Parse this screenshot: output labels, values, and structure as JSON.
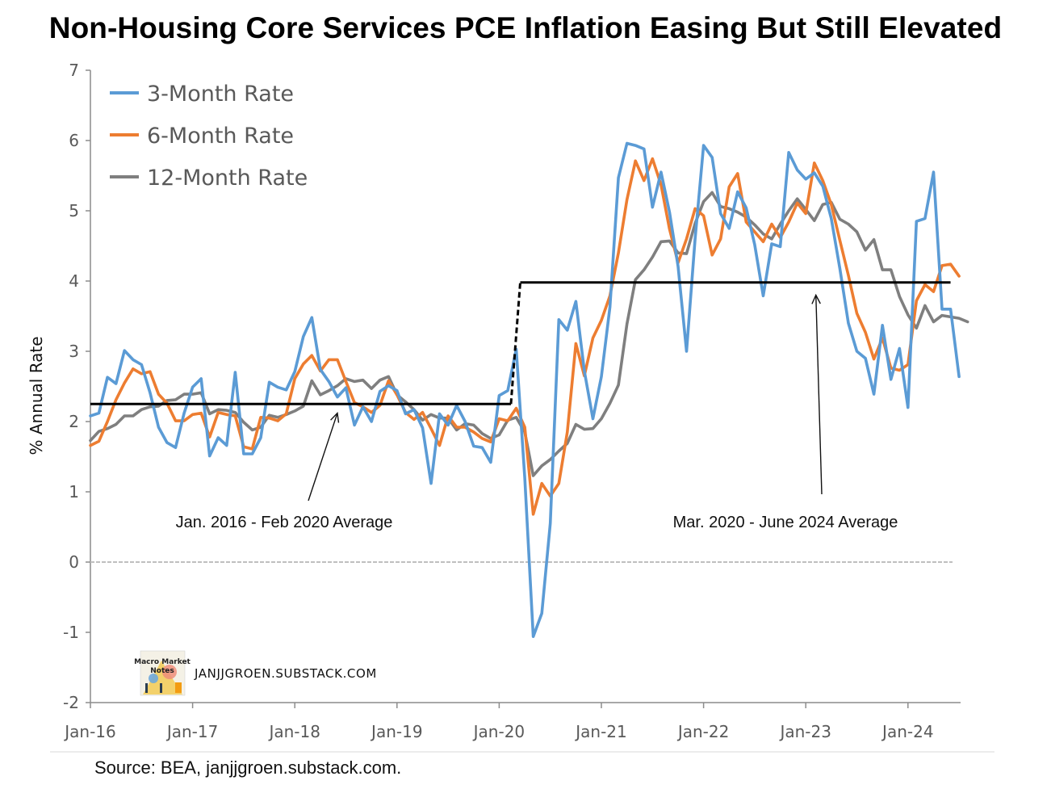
{
  "chart_data": {
    "type": "line",
    "title": "Non-Housing Core Services PCE Inflation Easing But Still Elevated",
    "ylabel": "% Annual Rate",
    "ylim": [
      -2,
      7
    ],
    "yticks": [
      -2,
      -1,
      0,
      1,
      2,
      3,
      4,
      5,
      6,
      7
    ],
    "xlim": [
      "2016-01",
      "2024-06"
    ],
    "xticks": [
      "Jan-16",
      "Jan-17",
      "Jan-18",
      "Jan-19",
      "Jan-20",
      "Jan-21",
      "Jan-22",
      "Jan-23",
      "Jan-24"
    ],
    "grid": false,
    "legend_position": "top-left",
    "colors": {
      "three_month": "#5B9BD5",
      "six_month": "#ED7D31",
      "twelve_month": "#7F7F7F",
      "average": "#000000",
      "zero_line": "#BFBFBF"
    },
    "series": [
      {
        "name": "3-Month Rate",
        "color": "#5B9BD5",
        "start": "2016-01",
        "values": [
          2.08,
          2.12,
          2.63,
          2.54,
          3.01,
          2.88,
          2.81,
          2.41,
          1.92,
          1.7,
          1.63,
          2.12,
          2.49,
          2.61,
          1.51,
          1.77,
          1.66,
          2.7,
          1.54,
          1.54,
          1.77,
          2.56,
          2.49,
          2.45,
          2.71,
          3.21,
          3.48,
          2.74,
          2.57,
          2.35,
          2.48,
          1.95,
          2.21,
          2.0,
          2.43,
          2.51,
          2.44,
          2.11,
          2.17,
          1.91,
          1.12,
          2.11,
          1.95,
          2.23,
          2.0,
          1.65,
          1.63,
          1.42,
          2.37,
          2.44,
          3.03,
          1.2,
          -1.06,
          -0.73,
          0.55,
          3.45,
          3.3,
          3.71,
          2.72,
          2.04,
          2.64,
          3.63,
          5.47,
          5.96,
          5.93,
          5.88,
          5.05,
          5.55,
          4.98,
          4.21,
          3.0,
          4.6,
          5.93,
          5.76,
          4.96,
          4.75,
          5.27,
          5.04,
          4.52,
          3.79,
          4.53,
          4.49,
          5.83,
          5.58,
          5.45,
          5.54,
          5.35,
          4.89,
          4.18,
          3.4,
          3.0,
          2.9,
          2.39,
          3.37,
          2.6,
          3.04,
          2.2,
          4.85,
          4.89,
          5.55,
          3.6,
          3.6,
          2.64
        ]
      },
      {
        "name": "6-Month Rate",
        "color": "#ED7D31",
        "start": "2016-01",
        "values": [
          1.66,
          1.72,
          2.0,
          2.31,
          2.55,
          2.75,
          2.68,
          2.71,
          2.39,
          2.26,
          2.01,
          2.01,
          2.1,
          2.12,
          1.78,
          2.13,
          2.1,
          2.08,
          1.64,
          1.61,
          2.06,
          2.05,
          2.01,
          2.11,
          2.61,
          2.82,
          2.94,
          2.72,
          2.88,
          2.88,
          2.57,
          2.27,
          2.21,
          2.13,
          2.23,
          2.58,
          2.38,
          2.13,
          2.03,
          2.13,
          1.9,
          1.66,
          2.08,
          1.92,
          1.92,
          1.85,
          1.76,
          1.71,
          2.04,
          2.01,
          2.19,
          1.92,
          0.68,
          1.12,
          0.94,
          1.12,
          1.85,
          3.11,
          2.65,
          3.19,
          3.44,
          3.79,
          4.4,
          5.16,
          5.71,
          5.43,
          5.74,
          5.37,
          4.74,
          4.26,
          4.6,
          5.03,
          4.93,
          4.37,
          4.6,
          5.34,
          5.53,
          4.84,
          4.7,
          4.56,
          4.81,
          4.62,
          4.84,
          5.11,
          4.96,
          5.68,
          5.43,
          5.09,
          4.58,
          4.08,
          3.54,
          3.27,
          2.89,
          3.19,
          2.76,
          2.73,
          2.81,
          3.72,
          3.95,
          3.85,
          4.22,
          4.24,
          4.07
        ]
      },
      {
        "name": "12-Month Rate",
        "color": "#7F7F7F",
        "start": "2016-01",
        "values": [
          1.73,
          1.86,
          1.9,
          1.96,
          2.08,
          2.08,
          2.17,
          2.21,
          2.22,
          2.3,
          2.31,
          2.39,
          2.39,
          2.41,
          2.11,
          2.17,
          2.16,
          2.13,
          1.99,
          1.88,
          1.92,
          2.09,
          2.06,
          2.1,
          2.15,
          2.22,
          2.58,
          2.38,
          2.44,
          2.51,
          2.61,
          2.57,
          2.59,
          2.47,
          2.59,
          2.64,
          2.38,
          2.28,
          2.17,
          2.02,
          2.1,
          2.05,
          2.05,
          1.88,
          1.97,
          1.95,
          1.83,
          1.76,
          1.81,
          2.02,
          2.06,
          1.85,
          1.23,
          1.37,
          1.46,
          1.58,
          1.69,
          1.96,
          1.89,
          1.9,
          2.04,
          2.26,
          2.52,
          3.39,
          4.02,
          4.16,
          4.34,
          4.56,
          4.57,
          4.4,
          4.39,
          4.82,
          5.13,
          5.26,
          5.06,
          5.03,
          4.98,
          4.91,
          4.8,
          4.67,
          4.6,
          4.81,
          5.0,
          5.17,
          5.02,
          4.86,
          5.09,
          5.12,
          4.88,
          4.81,
          4.7,
          4.44,
          4.59,
          4.16,
          4.16,
          3.78,
          3.52,
          3.33,
          3.65,
          3.42,
          3.51,
          3.49,
          3.47,
          3.42
        ]
      },
      {
        "name": "Jan. 2016 - Feb 2020 Average",
        "color": "#000000",
        "segment": {
          "start": "2016-01",
          "end": "2020-02",
          "value": 2.25
        }
      },
      {
        "name": "Mar. 2020 - June 2024 Average",
        "color": "#000000",
        "segment": {
          "start": "2020-03",
          "end": "2024-06",
          "value": 3.98
        }
      }
    ],
    "annotations": [
      {
        "text": "Jan. 2016 - Feb 2020 Average",
        "points_to": "2018-06"
      },
      {
        "text": "Mar. 2020 - June 2024 Average",
        "points_to": "2023-02"
      }
    ]
  },
  "legend": {
    "items": [
      {
        "label": "3-Month Rate",
        "color": "#5B9BD5"
      },
      {
        "label": "6-Month Rate",
        "color": "#ED7D31"
      },
      {
        "label": "12-Month Rate",
        "color": "#7F7F7F"
      }
    ]
  },
  "watermark": {
    "logo_text": [
      "Macro Market",
      "Notes"
    ],
    "url": "JANJJGROEN.SUBSTACK.COM"
  },
  "footer": {
    "source": "Source: BEA, janjjgroen.substack.com."
  }
}
